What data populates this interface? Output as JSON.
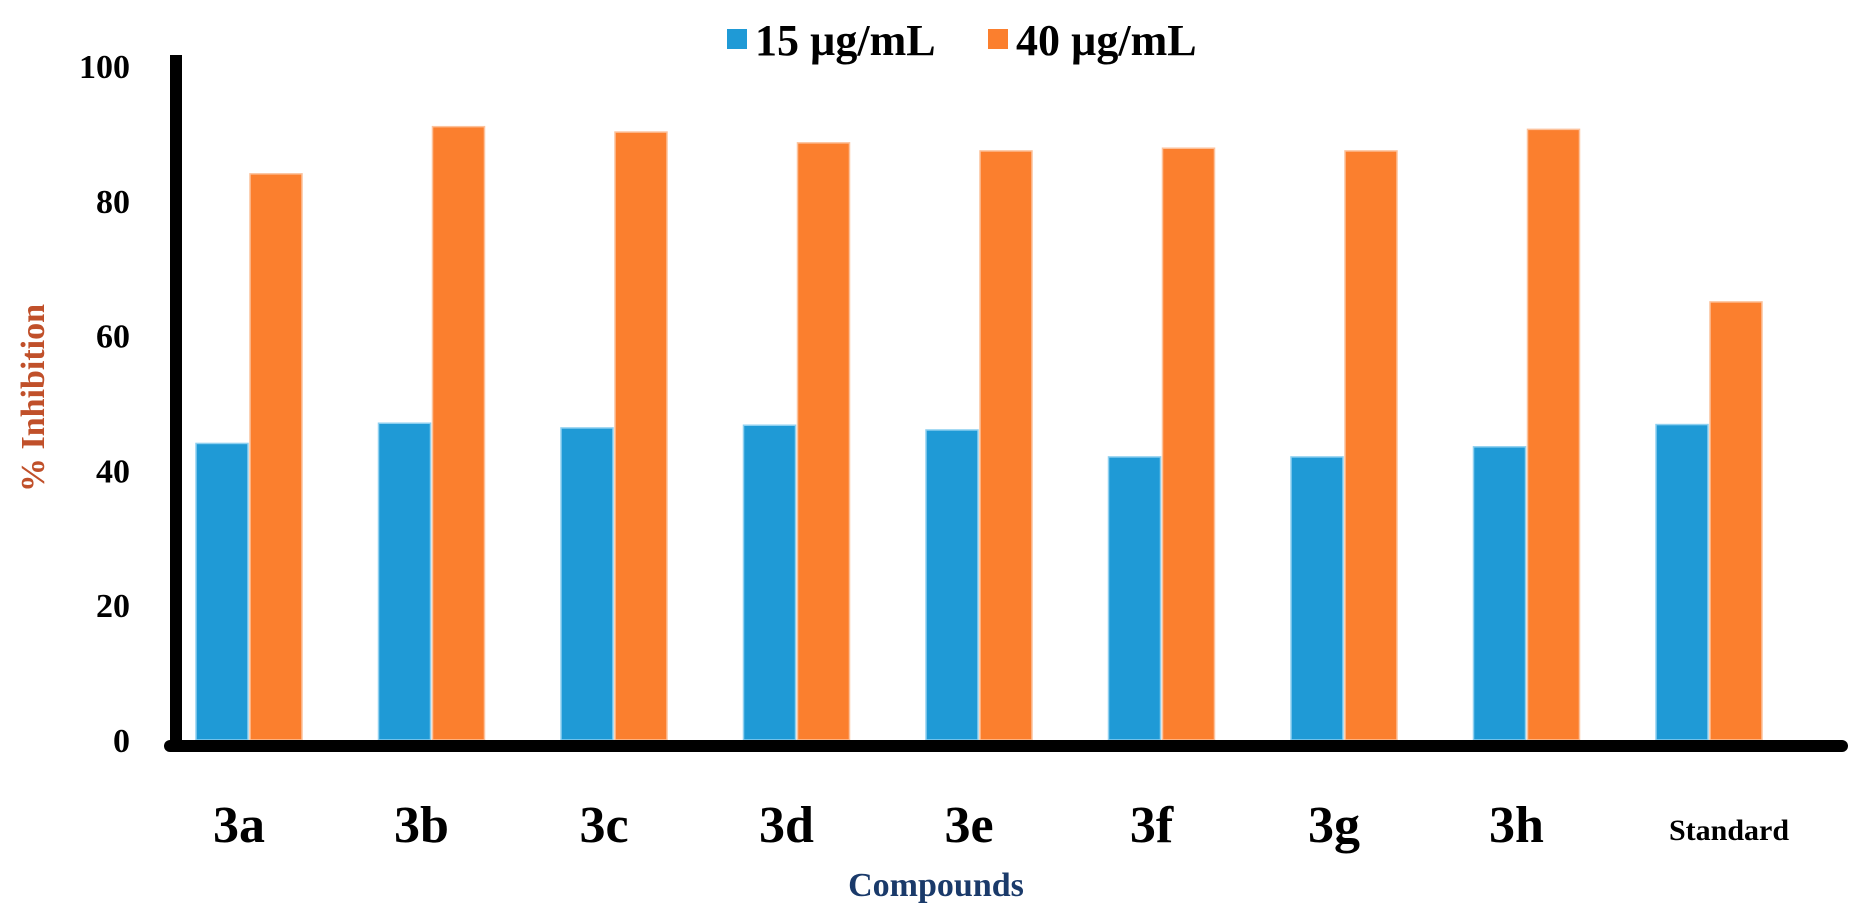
{
  "chart_data": {
    "type": "bar",
    "title": "",
    "xlabel": "Compounds",
    "ylabel": "% Inhibition",
    "categories": [
      "3a",
      "3b",
      "3c",
      "3d",
      "3e",
      "3f",
      "3g",
      "3h",
      "Standard"
    ],
    "series": [
      {
        "name": "15 µg/mL",
        "color": "#1f9ad6",
        "values": [
          44,
          47,
          46.3,
          46.7,
          46,
          42,
          42,
          43.5,
          46.8
        ]
      },
      {
        "name": "40 µg/mL",
        "color": "#fb7f2e",
        "values": [
          84,
          91,
          90.2,
          88.6,
          87.4,
          87.8,
          87.4,
          90.6,
          65
        ]
      }
    ],
    "yticks": [
      0,
      20,
      40,
      60,
      80,
      100
    ],
    "ytick_labels": [
      "0",
      "20",
      "40",
      "60",
      "80",
      "100"
    ],
    "ylim": [
      0,
      100
    ],
    "legend_position": "top-center",
    "grid": false,
    "colors": {
      "axis": "#000000",
      "ylabel": "#c0502a",
      "xlabel": "#1a3a6a"
    }
  }
}
